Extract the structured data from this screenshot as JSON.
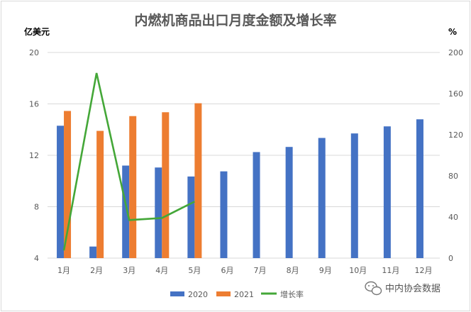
{
  "chart_data": {
    "type": "bar",
    "title": "内燃机商品出口月度金额及增长率",
    "categories": [
      "1月",
      "2月",
      "3月",
      "4月",
      "5月",
      "6月",
      "7月",
      "8月",
      "9月",
      "10月",
      "11月",
      "12月"
    ],
    "y_left": {
      "label": "亿美元",
      "range": [
        4,
        20
      ],
      "ticks": [
        "4",
        "8",
        "12",
        "16",
        "20"
      ]
    },
    "y_right": {
      "label": "%",
      "range": [
        0,
        200
      ],
      "ticks": [
        "0",
        "40",
        "80",
        "120",
        "160",
        "200"
      ]
    },
    "series": [
      {
        "name": "2020",
        "type": "bar",
        "axis": "left",
        "color": "#4472C4",
        "values": [
          14.3,
          4.9,
          11.2,
          11.05,
          10.35,
          10.75,
          12.25,
          12.65,
          13.35,
          13.7,
          14.25,
          14.8
        ]
      },
      {
        "name": "2021",
        "type": "bar",
        "axis": "left",
        "color": "#ED7D31",
        "values": [
          15.45,
          13.9,
          15.05,
          15.35,
          16.05,
          null,
          null,
          null,
          null,
          null,
          null,
          null
        ]
      },
      {
        "name": "增长率",
        "type": "line",
        "axis": "right",
        "color": "#44A738",
        "values": [
          7.5,
          180,
          37,
          39,
          55,
          null,
          null,
          null,
          null,
          null,
          null,
          null
        ]
      }
    ],
    "grid": true,
    "legend_position": "bottom"
  },
  "watermark": {
    "text": "中内协会数据",
    "icon": "wechat-icon"
  }
}
